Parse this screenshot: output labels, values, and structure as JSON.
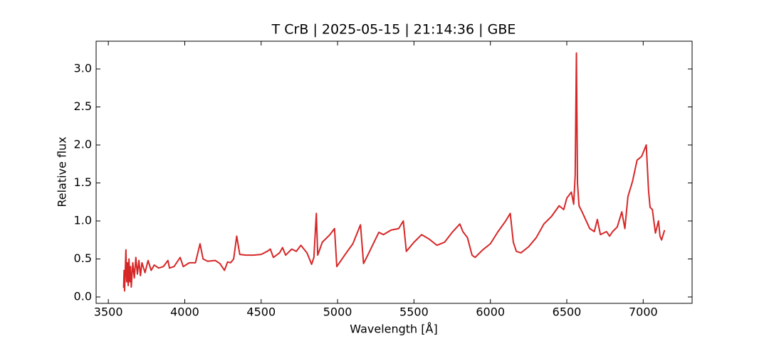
{
  "chart_data": {
    "type": "line",
    "title": "T CrB | 2025-05-15 | 21:14:36 | GBE",
    "x_label": "Wavelength [Å]",
    "y_label": "Relative flux",
    "xlim": [
      3420,
      7320
    ],
    "ylim": [
      -0.084,
      3.365
    ],
    "xticks": [
      3500,
      4000,
      4500,
      5000,
      5500,
      6000,
      6500,
      7000
    ],
    "yticks": [
      {
        "value": 0,
        "label": "0.0"
      },
      0.5,
      {
        "value": 1,
        "label": "1.0"
      },
      1.5,
      {
        "value": 2,
        "label": "2.0"
      },
      2.5,
      {
        "value": 3,
        "label": "3.0"
      }
    ],
    "series": [
      {
        "color": "#d62728",
        "x": [
          3600,
          3603,
          3606,
          3610,
          3615,
          3620,
          3625,
          3630,
          3635,
          3640,
          3645,
          3650,
          3660,
          3670,
          3680,
          3690,
          3700,
          3710,
          3720,
          3740,
          3760,
          3780,
          3800,
          3830,
          3860,
          3890,
          3900,
          3930,
          3970,
          3990,
          4030,
          4070,
          4100,
          4120,
          4150,
          4200,
          4230,
          4260,
          4280,
          4300,
          4320,
          4340,
          4360,
          4400,
          4450,
          4500,
          4540,
          4560,
          4580,
          4620,
          4640,
          4660,
          4700,
          4730,
          4760,
          4800,
          4830,
          4845,
          4861,
          4870,
          4900,
          4950,
          4980,
          4995,
          5050,
          5100,
          5150,
          5170,
          5200,
          5270,
          5300,
          5350,
          5400,
          5430,
          5450,
          5500,
          5550,
          5600,
          5650,
          5700,
          5750,
          5800,
          5820,
          5850,
          5880,
          5900,
          5950,
          6000,
          6050,
          6100,
          6130,
          6150,
          6170,
          6200,
          6250,
          6300,
          6350,
          6400,
          6450,
          6480,
          6500,
          6530,
          6545,
          6555,
          6563,
          6570,
          6580,
          6600,
          6650,
          6680,
          6700,
          6720,
          6760,
          6780,
          6800,
          6830,
          6860,
          6880,
          6900,
          6930,
          6960,
          6990,
          7020,
          7035,
          7045,
          7060,
          7080,
          7100,
          7110,
          7120,
          7140
        ],
        "values": [
          0.12,
          0.35,
          0.08,
          0.3,
          0.62,
          0.2,
          0.45,
          0.15,
          0.5,
          0.2,
          0.4,
          0.13,
          0.45,
          0.25,
          0.52,
          0.3,
          0.48,
          0.28,
          0.45,
          0.32,
          0.48,
          0.35,
          0.42,
          0.38,
          0.4,
          0.48,
          0.38,
          0.4,
          0.52,
          0.4,
          0.45,
          0.45,
          0.7,
          0.5,
          0.47,
          0.48,
          0.44,
          0.35,
          0.46,
          0.45,
          0.5,
          0.8,
          0.56,
          0.55,
          0.55,
          0.56,
          0.6,
          0.63,
          0.52,
          0.58,
          0.65,
          0.55,
          0.63,
          0.6,
          0.68,
          0.58,
          0.43,
          0.52,
          1.1,
          0.55,
          0.72,
          0.82,
          0.9,
          0.4,
          0.56,
          0.7,
          0.95,
          0.44,
          0.56,
          0.85,
          0.82,
          0.88,
          0.9,
          1.0,
          0.6,
          0.72,
          0.82,
          0.76,
          0.68,
          0.72,
          0.85,
          0.96,
          0.86,
          0.78,
          0.55,
          0.52,
          0.62,
          0.7,
          0.86,
          1.0,
          1.1,
          0.72,
          0.6,
          0.58,
          0.66,
          0.78,
          0.96,
          1.06,
          1.2,
          1.15,
          1.3,
          1.38,
          1.22,
          1.6,
          3.21,
          1.5,
          1.2,
          1.12,
          0.9,
          0.86,
          1.02,
          0.82,
          0.86,
          0.8,
          0.86,
          0.92,
          1.12,
          0.9,
          1.32,
          1.52,
          1.8,
          1.85,
          2.0,
          1.4,
          1.18,
          1.15,
          0.84,
          1.0,
          0.8,
          0.75,
          0.88
        ]
      }
    ]
  }
}
